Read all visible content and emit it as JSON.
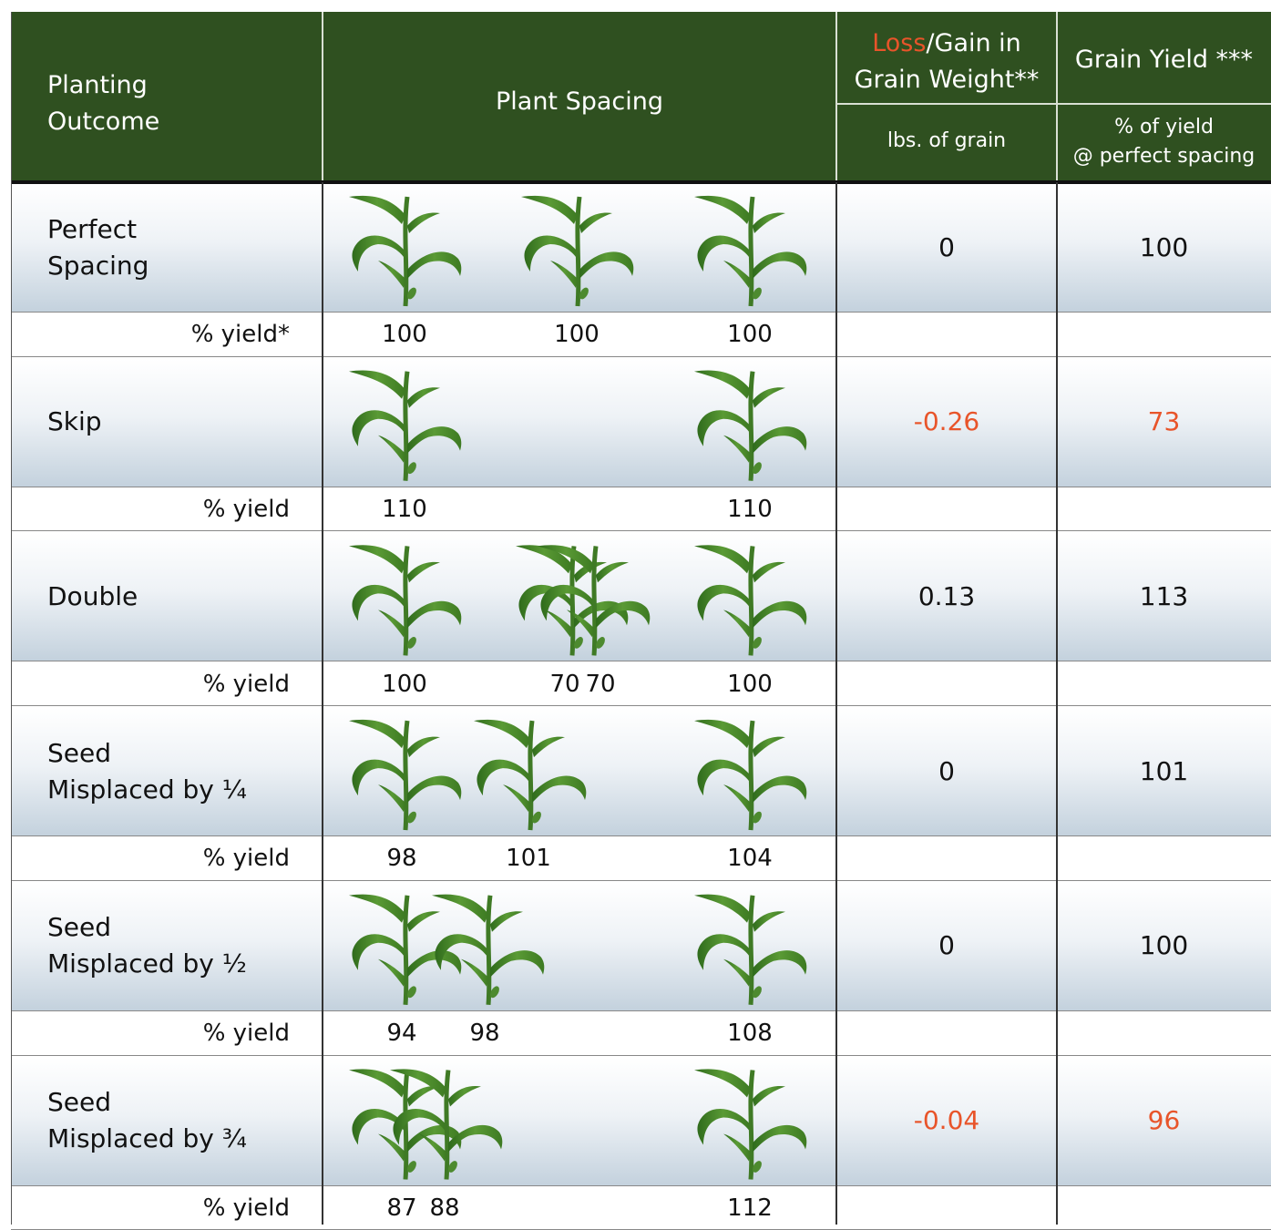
{
  "header": {
    "columns": [
      {
        "title": [
          "Planting",
          "Outcome"
        ]
      },
      {
        "title": "Plant Spacing"
      },
      {
        "accent": "Loss",
        "line1": "/Gain in",
        "line2": "Grain Weight**",
        "subtitle": "lbs. of grain"
      },
      {
        "title": "Grain Yield ***",
        "subtitle": [
          "% of yield",
          "@ perfect spacing"
        ]
      }
    ]
  },
  "accent_color": "#e8542a",
  "rows": [
    {
      "outcome": [
        "Perfect",
        "Spacing"
      ],
      "yield_label": "% yield*",
      "yields": [
        100,
        100,
        100
      ],
      "weight_change": 0,
      "grain_yield": 100
    },
    {
      "outcome": [
        "Skip"
      ],
      "yield_label": "% yield",
      "yields": [
        110,
        110
      ],
      "weight_change": -0.26,
      "grain_yield": 73,
      "value_color": "#e8542a"
    },
    {
      "outcome": [
        "Double"
      ],
      "yield_label": "% yield",
      "yields": [
        100,
        70,
        70,
        100
      ],
      "weight_change": 0.13,
      "grain_yield": 113
    },
    {
      "outcome": [
        "Seed",
        "Misplaced by ¼"
      ],
      "yield_label": "% yield",
      "yields": [
        98,
        101,
        104
      ],
      "weight_change": 0,
      "grain_yield": 101
    },
    {
      "outcome": [
        "Seed",
        "Misplaced by ½"
      ],
      "yield_label": "% yield",
      "yields": [
        94,
        98,
        108
      ],
      "weight_change": 0,
      "grain_yield": 100
    },
    {
      "outcome": [
        "Seed",
        "Misplaced by ¾"
      ],
      "yield_label": "% yield",
      "yields": [
        87,
        88,
        112
      ],
      "weight_change": -0.04,
      "grain_yield": 96,
      "value_color": "#e8542a"
    }
  ]
}
